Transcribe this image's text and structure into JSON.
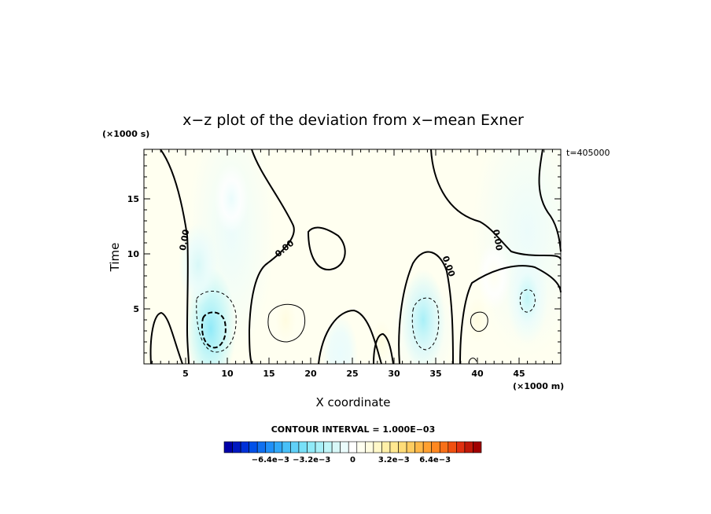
{
  "chart_data": {
    "type": "heatmap",
    "title": "x−z plot of the deviation from x−mean Exner",
    "xlabel": "X coordinate",
    "ylabel": "Time",
    "x_unit": "(×1000 m)",
    "y_unit": "(×1000 s)",
    "time_tag": "t=405000",
    "xlim": [
      0,
      50
    ],
    "ylim": [
      0,
      19.5
    ],
    "x_ticks": [
      "5",
      "10",
      "15",
      "20",
      "25",
      "30",
      "35",
      "40",
      "45"
    ],
    "y_ticks": [
      "5",
      "10",
      "15"
    ],
    "x_tick_values": [
      5,
      10,
      15,
      20,
      25,
      30,
      35,
      40,
      45
    ],
    "y_tick_values": [
      5,
      10,
      15
    ],
    "contour_interval_text": "CONTOUR INTERVAL = 1.000E−03",
    "contour_labels": [
      "0.00",
      "0.00",
      "0.00",
      "0.00"
    ],
    "colorbar": {
      "tick_labels": [
        "−6.4e−3",
        "−3.2e−3",
        "0",
        "3.2e−3",
        "6.4e−3"
      ],
      "tick_values": [
        -0.0064,
        -0.0032,
        0,
        0.0032,
        0.0064
      ],
      "range": [
        -0.01,
        0.01
      ],
      "colors": [
        "#0000a8",
        "#0018c0",
        "#0030d8",
        "#0050e8",
        "#1070f0",
        "#2090f8",
        "#30a8f8",
        "#48c0f8",
        "#60d0f8",
        "#78e0f8",
        "#90eaf8",
        "#a8f0f8",
        "#c0f6f8",
        "#d8f8f8",
        "#eafcfc",
        "#ffffff",
        "#fffff0",
        "#fffce0",
        "#fff8c8",
        "#fff0a8",
        "#ffe890",
        "#ffdc78",
        "#ffcc60",
        "#ffb848",
        "#ffa030",
        "#ff8820",
        "#f87018",
        "#f05010",
        "#e03010",
        "#c01808",
        "#a00000"
      ]
    },
    "anomalies": [
      {
        "x": 8,
        "y": 3.2,
        "value": -0.0036
      },
      {
        "x": 6.5,
        "y": 9,
        "value": -0.0014
      },
      {
        "x": 10.5,
        "y": 15,
        "value": -0.0006
      },
      {
        "x": 33.5,
        "y": 4,
        "value": -0.0024
      },
      {
        "x": 46,
        "y": 6,
        "value": -0.0019
      },
      {
        "x": 23.5,
        "y": 1,
        "value": -0.0009
      },
      {
        "x": 17,
        "y": 4,
        "value": 0.0012
      },
      {
        "x": 2,
        "y": 2.5,
        "value": 0.001
      },
      {
        "x": 2.5,
        "y": 9.5,
        "value": 0.0008
      },
      {
        "x": 28.5,
        "y": 2,
        "value": 0.0011
      },
      {
        "x": 28,
        "y": 10,
        "value": 0.0007
      },
      {
        "x": 40,
        "y": 4,
        "value": 0.0014
      },
      {
        "x": 42,
        "y": 8,
        "value": 0.0005
      }
    ]
  }
}
